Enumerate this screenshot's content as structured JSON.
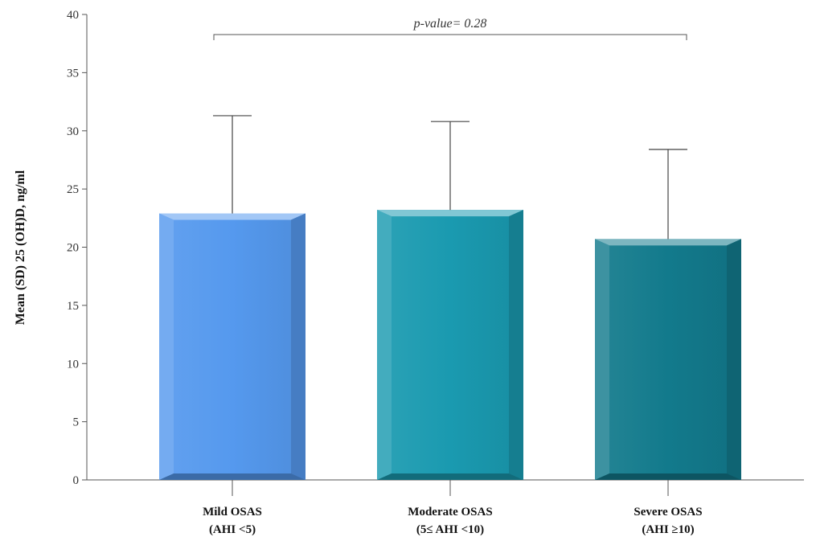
{
  "chart_data": {
    "type": "bar",
    "title": "",
    "xlabel": "",
    "ylabel": "Mean (SD) 25 (OH)D, ng/ml",
    "ylim": [
      0,
      40
    ],
    "yticks": [
      0,
      5,
      10,
      15,
      20,
      25,
      30,
      35,
      40
    ],
    "grid": false,
    "categories": [
      {
        "line1": "Mild OSAS",
        "line2": "(AHI <5)"
      },
      {
        "line1": "Moderate OSAS",
        "line2": "(5≤ AHI <10)"
      },
      {
        "line1": "Severe OSAS",
        "line2": "(AHI ≥10)"
      }
    ],
    "values": [
      22.9,
      23.2,
      20.7
    ],
    "error_upper": [
      31.3,
      30.8,
      28.4
    ],
    "colors": [
      "#5599ee",
      "#1a9ab0",
      "#127a8c"
    ],
    "annotation": {
      "text": "p-value= 0.28",
      "from": 0,
      "to": 2
    }
  }
}
